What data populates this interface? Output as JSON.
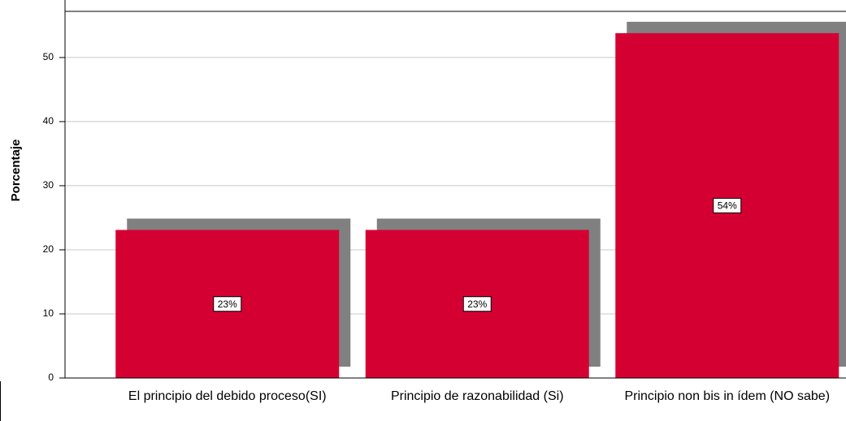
{
  "chart_data": {
    "type": "bar",
    "y_label": "Porcentaje",
    "categories": [
      "El principio del debido proceso(SI)",
      "Principio de razonabilidad (Si)",
      "Principio non bis in ídem (NO sabe)"
    ],
    "values": [
      23.1,
      23.1,
      53.8
    ],
    "value_labels": [
      "23%",
      "23%",
      "54%"
    ],
    "color": "#d50032",
    "shadow_color": "#808080",
    "ylim": [
      0,
      57.2
    ],
    "yticks": [
      0,
      10,
      20,
      30,
      40,
      50
    ],
    "grid": true
  }
}
